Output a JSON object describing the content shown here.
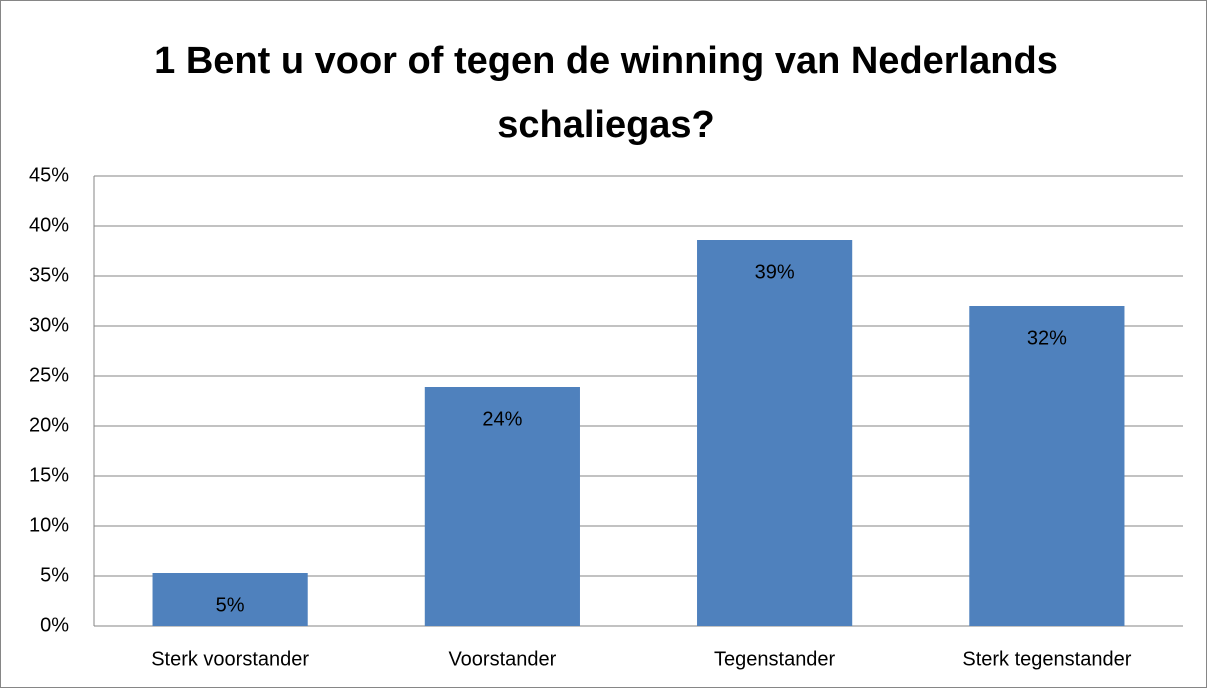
{
  "chart_data": {
    "type": "bar",
    "title": "1 Bent u voor of tegen de winning van Nederlands schaliegas?",
    "categories": [
      "Sterk voorstander",
      "Voorstander",
      "Tegenstander",
      "Sterk tegenstander"
    ],
    "values": [
      5.3,
      23.9,
      38.6,
      32.0
    ],
    "value_labels": [
      "5%",
      "24%",
      "39%",
      "32%"
    ],
    "color": "#4f81bd",
    "ylim": [
      0,
      45
    ],
    "yticks": [
      {
        "value": 0,
        "label": "0%"
      },
      {
        "value": 5,
        "label": "5%"
      },
      {
        "value": 10,
        "label": "10%"
      },
      {
        "value": 15,
        "label": "15%"
      },
      {
        "value": 20,
        "label": "20%"
      },
      {
        "value": 25,
        "label": "25%"
      },
      {
        "value": 30,
        "label": "30%"
      },
      {
        "value": 35,
        "label": "35%"
      },
      {
        "value": 40,
        "label": "40%"
      },
      {
        "value": 45,
        "label": "45%"
      }
    ],
    "grid": true
  }
}
